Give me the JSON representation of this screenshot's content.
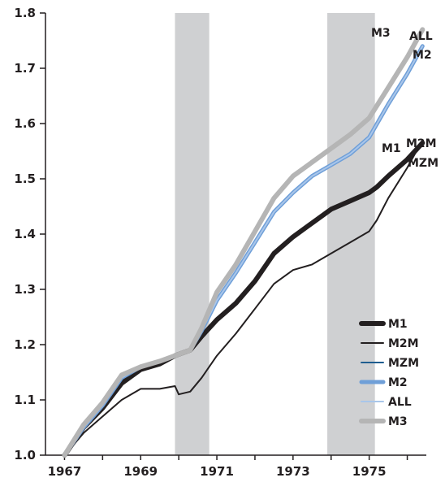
{
  "chart_data": {
    "type": "line",
    "title": "",
    "xlabel": "",
    "ylabel": "",
    "xlim": [
      1966.5,
      1976.5
    ],
    "ylim": [
      1.0,
      1.8
    ],
    "x_ticks": [
      1967,
      1969,
      1971,
      1973,
      1975
    ],
    "x_tick_labels": [
      "1967",
      "1969",
      "1971",
      "1973",
      "1975"
    ],
    "y_ticks": [
      1.0,
      1.1,
      1.2,
      1.3,
      1.4,
      1.5,
      1.6,
      1.7,
      1.8
    ],
    "y_tick_labels": [
      "1.0",
      "1.1",
      "1.2",
      "1.3",
      "1.4",
      "1.5",
      "1.6",
      "1.7",
      "1.8"
    ],
    "grid": false,
    "legend_position": "bottom-right",
    "shaded_periods": [
      [
        1969.9,
        1970.8
      ],
      [
        1973.9,
        1975.15
      ]
    ],
    "series": [
      {
        "name": "M1",
        "color": "#231f20",
        "width": 6,
        "x": [
          1967.0,
          1967.5,
          1968.0,
          1968.5,
          1969.0,
          1969.5,
          1969.9,
          1970.3,
          1970.6,
          1971.0,
          1971.5,
          1972.0,
          1972.5,
          1973.0,
          1973.5,
          1974.0,
          1974.5,
          1975.0,
          1975.2,
          1975.5,
          1976.0,
          1976.4
        ],
        "y": [
          1.0,
          1.05,
          1.085,
          1.13,
          1.155,
          1.165,
          1.18,
          1.19,
          1.215,
          1.245,
          1.275,
          1.315,
          1.365,
          1.395,
          1.42,
          1.445,
          1.46,
          1.475,
          1.485,
          1.505,
          1.535,
          1.565
        ]
      },
      {
        "name": "M2M",
        "color": "#231f20",
        "width": 2,
        "x": [
          1967.0,
          1967.5,
          1968.0,
          1968.5,
          1969.0,
          1969.5,
          1969.9,
          1970.0,
          1970.3,
          1970.6,
          1971.0,
          1971.5,
          1972.0,
          1972.5,
          1973.0,
          1973.5,
          1974.0,
          1974.5,
          1975.0,
          1975.2,
          1975.5,
          1976.0,
          1976.4
        ],
        "y": [
          1.0,
          1.04,
          1.07,
          1.1,
          1.12,
          1.12,
          1.125,
          1.11,
          1.115,
          1.14,
          1.18,
          1.22,
          1.265,
          1.31,
          1.335,
          1.345,
          1.365,
          1.385,
          1.405,
          1.425,
          1.465,
          1.52,
          1.57
        ]
      },
      {
        "name": "MZM",
        "color": "#1f5d8f",
        "width": 2,
        "x": [
          1967.0,
          1967.5,
          1968.0,
          1968.5,
          1969.0,
          1969.5,
          1969.9,
          1970.3,
          1970.6,
          1971.0,
          1971.5,
          1972.0,
          1972.5,
          1973.0,
          1973.5,
          1974.0,
          1974.5,
          1975.0,
          1975.5,
          1976.0,
          1976.4
        ],
        "y": [
          1.0,
          1.05,
          1.09,
          1.14,
          1.16,
          1.17,
          1.18,
          1.19,
          1.225,
          1.28,
          1.33,
          1.385,
          1.44,
          1.475,
          1.505,
          1.525,
          1.545,
          1.575,
          1.635,
          1.69,
          1.74
        ]
      },
      {
        "name": "M2",
        "color": "#6f9fd8",
        "width": 5,
        "x": [
          1967.0,
          1967.5,
          1968.0,
          1968.5,
          1969.0,
          1969.5,
          1969.9,
          1970.3,
          1970.6,
          1971.0,
          1971.5,
          1972.0,
          1972.5,
          1973.0,
          1973.5,
          1974.0,
          1974.5,
          1975.0,
          1975.5,
          1976.0,
          1976.4
        ],
        "y": [
          1.0,
          1.05,
          1.09,
          1.14,
          1.16,
          1.17,
          1.18,
          1.19,
          1.225,
          1.28,
          1.33,
          1.385,
          1.44,
          1.475,
          1.505,
          1.525,
          1.545,
          1.575,
          1.635,
          1.69,
          1.74
        ]
      },
      {
        "name": "ALL",
        "color": "#a9c6ea",
        "width": 2,
        "x": [
          1967.0,
          1967.5,
          1968.0,
          1968.5,
          1969.0,
          1969.5,
          1969.9,
          1970.3,
          1970.6,
          1971.0,
          1971.5,
          1972.0,
          1972.5,
          1973.0,
          1973.5,
          1974.0,
          1974.5,
          1975.0,
          1975.5,
          1976.0,
          1976.4
        ],
        "y": [
          1.0,
          1.05,
          1.09,
          1.14,
          1.16,
          1.17,
          1.18,
          1.19,
          1.225,
          1.28,
          1.33,
          1.385,
          1.44,
          1.475,
          1.505,
          1.525,
          1.545,
          1.575,
          1.635,
          1.69,
          1.74
        ]
      },
      {
        "name": "M3",
        "color": "#b5b5b5",
        "width": 6,
        "x": [
          1967.0,
          1967.5,
          1968.0,
          1968.5,
          1969.0,
          1969.5,
          1969.9,
          1970.3,
          1970.6,
          1971.0,
          1971.5,
          1972.0,
          1972.5,
          1973.0,
          1973.5,
          1974.0,
          1974.5,
          1975.0,
          1975.5,
          1976.0,
          1976.4
        ],
        "y": [
          1.0,
          1.055,
          1.095,
          1.145,
          1.16,
          1.17,
          1.18,
          1.19,
          1.23,
          1.295,
          1.345,
          1.405,
          1.465,
          1.505,
          1.53,
          1.555,
          1.58,
          1.61,
          1.665,
          1.72,
          1.77
        ]
      }
    ],
    "end_labels": [
      {
        "text": "M3",
        "series": "M3"
      },
      {
        "text": "ALL",
        "series": "ALL"
      },
      {
        "text": "M2",
        "series": "M2"
      },
      {
        "text": "M1",
        "series": "M1"
      },
      {
        "text": "M2M",
        "series": "M2M"
      },
      {
        "text": "MZM",
        "series": "MZM"
      }
    ]
  }
}
